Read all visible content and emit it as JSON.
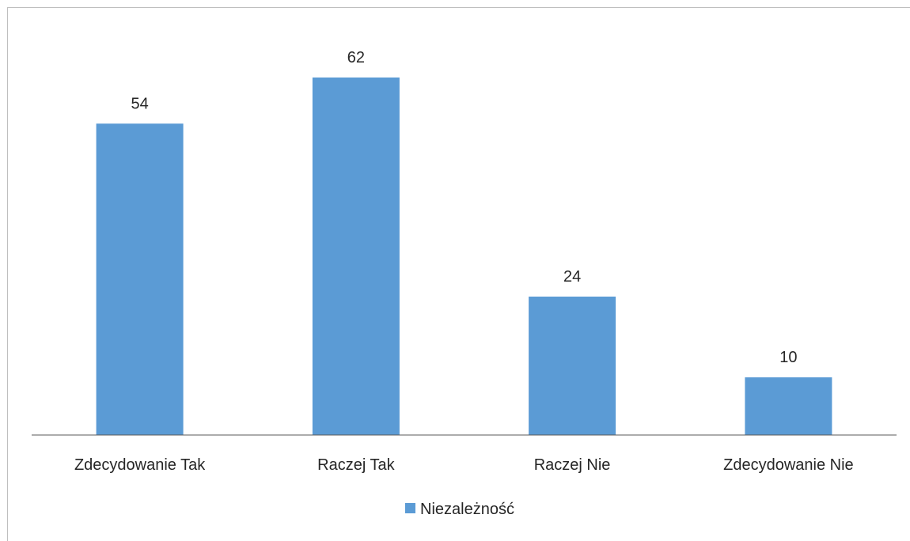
{
  "chart_data": {
    "type": "bar",
    "categories": [
      "Zdecydowanie Tak",
      "Raczej Tak",
      "Raczej Nie",
      "Zdecydowanie Nie"
    ],
    "series": [
      {
        "name": "Niezależność",
        "values": [
          54,
          62,
          24,
          10
        ],
        "color": "#5b9bd5"
      }
    ],
    "title": "",
    "xlabel": "",
    "ylabel": "",
    "ylim": [
      0,
      70
    ],
    "grid": false,
    "legend": "bottom",
    "data_labels": true,
    "y_axis_visible": false
  }
}
